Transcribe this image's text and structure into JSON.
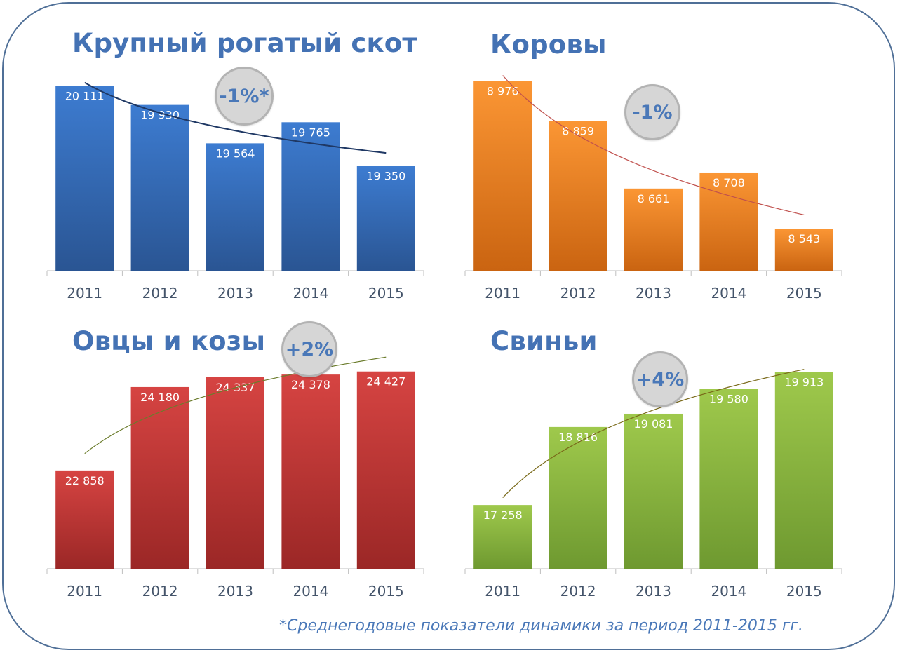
{
  "footnote": "*Среднегодовые показатели динамики за период 2011-2015 гг.",
  "chart_data": [
    {
      "type": "bar",
      "title": "Крупный рогатый скот",
      "badge": "-1%*",
      "categories": [
        "2011",
        "2012",
        "2013",
        "2014",
        "2015"
      ],
      "values": [
        20111,
        19930,
        19564,
        19765,
        19350
      ],
      "value_labels": [
        "20 111",
        "19 930",
        "19 564",
        "19 765",
        "19 350"
      ],
      "trendline": "logarithmic",
      "ylim": [
        18350,
        20235
      ],
      "colors": {
        "top": "#3d7cd1",
        "bottom": "#2a5593",
        "trend": "#1f3864"
      }
    },
    {
      "type": "bar",
      "title": "Коровы",
      "badge": "-1%",
      "categories": [
        "2011",
        "2012",
        "2013",
        "2014",
        "2015"
      ],
      "values": [
        8976,
        8859,
        8661,
        8708,
        8543
      ],
      "value_labels": [
        "8 976",
        "8 859",
        "8 661",
        "8 708",
        "8 543"
      ],
      "trendline": "logarithmic",
      "ylim": [
        8420,
        9000
      ],
      "colors": {
        "top": "#fb9634",
        "bottom": "#ca6411",
        "trend": "#c0504d"
      }
    },
    {
      "type": "bar",
      "title": "Овцы и козы",
      "badge": "+2%",
      "categories": [
        "2011",
        "2012",
        "2013",
        "2014",
        "2015"
      ],
      "values": [
        22858,
        24180,
        24337,
        24378,
        24427
      ],
      "value_labels": [
        "22 858",
        "24 180",
        "24 337",
        "24 378",
        "24 427"
      ],
      "trendline": "logarithmic",
      "ylim": [
        21300,
        24435
      ],
      "colors": {
        "top": "#d64442",
        "bottom": "#9b2726",
        "trend": "#6b7c2c"
      }
    },
    {
      "type": "bar",
      "title": "Свиньи",
      "badge": "+4%",
      "categories": [
        "2011",
        "2012",
        "2013",
        "2014",
        "2015"
      ],
      "values": [
        17258,
        18816,
        19081,
        19580,
        19913
      ],
      "value_labels": [
        "17 258",
        "18 816",
        "19 081",
        "19 580",
        "19 913"
      ],
      "trendline": "logarithmic",
      "ylim": [
        15985,
        19935
      ],
      "colors": {
        "top": "#9fc94c",
        "bottom": "#6e9930",
        "trend": "#7a6a1a"
      }
    }
  ]
}
